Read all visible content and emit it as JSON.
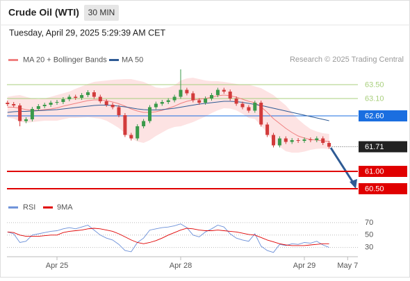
{
  "header": {
    "title": "Crude Oil (WTI)",
    "timeframe": "30 MIN",
    "timestamp": "Tuesday, April 29, 2025 5:29:39 AM CET",
    "credit": "Research © 2025 Trading Central"
  },
  "chart_data": [
    {
      "type": "candlestick",
      "ylim": [
        60.24,
        64.04
      ],
      "up_color": "#3a9a4a",
      "down_color": "#d23b3b",
      "candles": {
        "open": [
          62.98,
          62.94,
          62.9,
          62.45,
          62.5,
          62.8,
          62.88,
          62.92,
          62.98,
          63.0,
          63.08,
          63.15,
          63.12,
          63.2,
          63.28,
          63.15,
          63.02,
          62.92,
          62.85,
          62.62,
          62.05,
          61.95,
          62.3,
          62.45,
          62.85,
          62.95,
          63.0,
          63.05,
          63.15,
          63.35,
          63.25,
          63.05,
          62.98,
          63.1,
          63.2,
          63.35,
          63.3,
          63.1,
          62.95,
          62.85,
          62.75,
          62.98,
          62.35,
          62.05,
          61.75,
          61.95,
          61.85,
          61.9,
          61.88,
          61.92,
          61.9,
          61.95,
          61.82,
          null,
          null,
          null
        ],
        "high": [
          63.04,
          63.0,
          62.96,
          62.56,
          62.86,
          62.94,
          62.98,
          63.04,
          63.06,
          63.14,
          63.21,
          63.21,
          63.26,
          63.34,
          63.34,
          63.21,
          63.08,
          62.98,
          62.91,
          62.68,
          62.11,
          62.36,
          62.51,
          62.91,
          63.01,
          63.06,
          63.11,
          63.21,
          63.94,
          63.41,
          63.31,
          63.11,
          63.16,
          63.26,
          63.41,
          63.41,
          63.36,
          63.16,
          63.01,
          62.91,
          63.04,
          63.04,
          62.41,
          62.11,
          62.01,
          62.01,
          61.96,
          61.96,
          61.98,
          61.98,
          62.01,
          62.01,
          61.88,
          null,
          null,
          null
        ],
        "low": [
          62.88,
          62.84,
          62.3,
          62.39,
          62.44,
          62.74,
          62.82,
          62.86,
          62.92,
          62.94,
          63.02,
          63.06,
          63.06,
          63.14,
          63.09,
          62.96,
          62.86,
          62.79,
          62.56,
          61.99,
          61.89,
          61.89,
          62.24,
          62.39,
          62.79,
          62.89,
          62.94,
          62.99,
          63.09,
          63.19,
          62.99,
          62.92,
          62.92,
          63.04,
          63.14,
          63.24,
          63.04,
          62.89,
          62.79,
          62.69,
          62.69,
          62.29,
          61.99,
          61.69,
          61.69,
          61.79,
          61.79,
          61.82,
          61.82,
          61.84,
          61.84,
          61.76,
          61.65,
          null,
          null,
          null
        ],
        "close": [
          62.94,
          62.9,
          62.45,
          62.5,
          62.8,
          62.88,
          62.92,
          62.98,
          63.0,
          63.08,
          63.15,
          63.12,
          63.2,
          63.28,
          63.15,
          63.02,
          62.92,
          62.85,
          62.62,
          62.05,
          61.95,
          62.3,
          62.45,
          62.85,
          62.95,
          63.0,
          63.05,
          63.15,
          63.35,
          63.25,
          63.05,
          62.98,
          63.1,
          63.2,
          63.35,
          63.3,
          63.1,
          62.95,
          62.85,
          62.75,
          62.98,
          62.35,
          62.05,
          61.75,
          61.95,
          61.85,
          61.9,
          61.88,
          61.92,
          61.9,
          61.95,
          61.82,
          61.71,
          null,
          null,
          null
        ]
      },
      "series": [
        {
          "name": "MA 20 + Bollinger Bands",
          "color": "#f08080",
          "band_color": "#fde3e3",
          "values": [
            62.85,
            62.85,
            62.82,
            62.78,
            62.76,
            62.76,
            62.78,
            62.8,
            62.83,
            62.88,
            62.92,
            62.96,
            63.0,
            63.04,
            63.06,
            63.06,
            63.04,
            63.0,
            62.95,
            62.88,
            62.8,
            62.74,
            62.7,
            62.7,
            62.72,
            62.76,
            62.82,
            62.88,
            62.96,
            63.02,
            63.06,
            63.08,
            63.1,
            63.14,
            63.18,
            63.2,
            63.18,
            63.14,
            63.08,
            63.02,
            62.98,
            62.86,
            62.7,
            62.52,
            62.38,
            62.24,
            62.12,
            62.02,
            61.96,
            61.92,
            61.9,
            61.88,
            61.86,
            null,
            null,
            null
          ],
          "upper": [
            63.15,
            63.18,
            63.2,
            63.15,
            63.1,
            63.08,
            63.1,
            63.15,
            63.2,
            63.25,
            63.3,
            63.38,
            63.45,
            63.52,
            63.58,
            63.6,
            63.62,
            63.64,
            63.65,
            63.66,
            63.66,
            63.62,
            63.58,
            63.5,
            63.42,
            63.4,
            63.42,
            63.48,
            63.62,
            63.68,
            63.7,
            63.66,
            63.62,
            63.6,
            63.6,
            63.58,
            63.55,
            63.52,
            63.5,
            63.5,
            63.45,
            63.4,
            63.3,
            63.2,
            63.05,
            62.9,
            62.7,
            62.5,
            62.35,
            62.22,
            62.15,
            62.1,
            62.08,
            null,
            null,
            null
          ],
          "lower": [
            62.55,
            62.52,
            62.44,
            62.4,
            62.42,
            62.44,
            62.46,
            62.46,
            62.46,
            62.5,
            62.54,
            62.54,
            62.55,
            62.56,
            62.54,
            62.52,
            62.46,
            62.36,
            62.25,
            62.1,
            61.95,
            61.86,
            61.82,
            61.9,
            62.02,
            62.12,
            62.22,
            62.28,
            62.3,
            62.36,
            62.42,
            62.5,
            62.58,
            62.68,
            62.76,
            62.82,
            62.81,
            62.76,
            62.66,
            62.54,
            62.51,
            62.32,
            62.1,
            61.84,
            61.71,
            61.58,
            61.54,
            61.54,
            61.57,
            61.62,
            61.65,
            61.66,
            61.64,
            null,
            null,
            null
          ]
        },
        {
          "name": "MA 50",
          "color": "#2e5a94",
          "values": [
            62.7,
            62.72,
            62.73,
            62.73,
            62.74,
            62.75,
            62.76,
            62.77,
            62.78,
            62.8,
            62.82,
            62.84,
            62.86,
            62.88,
            62.9,
            62.91,
            62.91,
            62.9,
            62.88,
            62.86,
            62.83,
            62.8,
            62.78,
            62.77,
            62.77,
            62.78,
            62.8,
            62.82,
            62.85,
            62.88,
            62.91,
            62.94,
            62.96,
            62.98,
            63.0,
            63.02,
            63.02,
            63.01,
            62.99,
            62.96,
            62.93,
            62.9,
            62.86,
            62.82,
            62.78,
            62.74,
            62.7,
            62.66,
            62.62,
            62.58,
            62.54,
            62.5,
            62.46,
            null,
            null,
            null
          ]
        }
      ],
      "levels": [
        {
          "value": 63.5,
          "label": "63.50",
          "style": "line",
          "color": "#a8cf7c"
        },
        {
          "value": 63.1,
          "label": "63.10",
          "style": "line",
          "color": "#a8cf7c"
        },
        {
          "value": 62.6,
          "label": "62.60",
          "style": "box",
          "color": "#1a6ee0"
        },
        {
          "value": 61.71,
          "label": "61.71",
          "style": "box",
          "color": "#222222",
          "dotted": true
        },
        {
          "value": 61,
          "label": "61.00",
          "style": "box",
          "color": "#e00000"
        },
        {
          "value": 60.5,
          "label": "60.50",
          "style": "box",
          "color": "#e00000"
        }
      ]
    },
    {
      "type": "line",
      "ylim": [
        15,
        80
      ],
      "yticks": [
        30,
        50,
        70
      ],
      "grid": true,
      "categories": [
        null,
        null,
        null,
        null,
        null,
        null,
        null,
        null,
        "Apr 25",
        null,
        null,
        null,
        null,
        null,
        null,
        null,
        null,
        null,
        null,
        null,
        null,
        null,
        null,
        null,
        null,
        null,
        null,
        null,
        "Apr 28",
        null,
        null,
        null,
        null,
        null,
        null,
        null,
        null,
        null,
        null,
        null,
        null,
        null,
        null,
        null,
        null,
        null,
        null,
        null,
        "Apr 29",
        null,
        null,
        null,
        null,
        null,
        null,
        "May 7"
      ],
      "series": [
        {
          "name": "RSI",
          "color": "#6a8fd8",
          "values": [
            55,
            52,
            38,
            40,
            50,
            52,
            54,
            56,
            57,
            60,
            62,
            60,
            63,
            66,
            58,
            50,
            45,
            42,
            35,
            25,
            23,
            38,
            45,
            58,
            60,
            62,
            63,
            65,
            68,
            62,
            50,
            47,
            55,
            60,
            66,
            63,
            52,
            45,
            42,
            40,
            52,
            32,
            25,
            22,
            35,
            33,
            36,
            35,
            38,
            37,
            40,
            34,
            30,
            null,
            null,
            null
          ]
        },
        {
          "name": "9MA",
          "color": "#e00000",
          "values": [
            55,
            54,
            50,
            48,
            48,
            48,
            49,
            50,
            50,
            54,
            56,
            57,
            58,
            60,
            61,
            60,
            58,
            56,
            52,
            47,
            42,
            38,
            36,
            38,
            41,
            45,
            50,
            54,
            58,
            61,
            60,
            58,
            57,
            57,
            58,
            57,
            56,
            55,
            53,
            51,
            50,
            46,
            42,
            39,
            36,
            34,
            33,
            33,
            33,
            34,
            35,
            36,
            36,
            null,
            null,
            null
          ]
        }
      ]
    }
  ]
}
